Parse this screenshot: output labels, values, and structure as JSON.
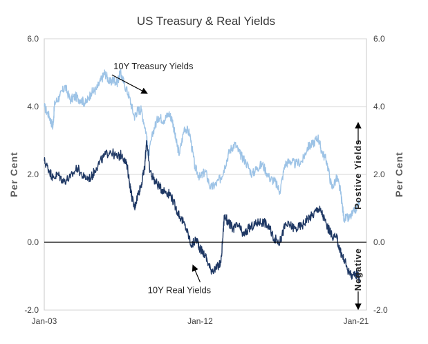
{
  "chart_data": {
    "type": "line",
    "title": "US Treasury & Real Yields",
    "ylabel_left": "Per Cent",
    "ylabel_right": "Per Cent",
    "ylim": [
      -2.0,
      6.0
    ],
    "yticks": [
      "6.0",
      "4.0",
      "2.0",
      "0.0",
      "-2.0"
    ],
    "ytick_values": [
      6,
      4,
      2,
      0,
      -2
    ],
    "xlim": [
      2003.0,
      2021.6
    ],
    "xticks": [
      "Jan-03",
      "Jan-12",
      "Jan-21"
    ],
    "xtick_values": [
      2003.0,
      2012.0,
      2021.0
    ],
    "grid": true,
    "series": [
      {
        "name": "10Y Treasury Yields",
        "color": "#9dc3e6",
        "x": [
          2003.0,
          2003.3,
          2003.5,
          2003.6,
          2003.9,
          2004.2,
          2004.5,
          2004.8,
          2005.1,
          2005.4,
          2005.7,
          2006.0,
          2006.3,
          2006.5,
          2006.8,
          2007.0,
          2007.2,
          2007.4,
          2007.6,
          2007.9,
          2008.2,
          2008.4,
          2008.6,
          2008.9,
          2009.0,
          2009.3,
          2009.6,
          2009.9,
          2010.2,
          2010.4,
          2010.6,
          2010.8,
          2011.1,
          2011.4,
          2011.7,
          2012.0,
          2012.3,
          2012.6,
          2012.9,
          2013.2,
          2013.4,
          2013.7,
          2014.0,
          2014.3,
          2014.6,
          2015.0,
          2015.3,
          2015.6,
          2016.0,
          2016.3,
          2016.6,
          2016.9,
          2017.2,
          2017.5,
          2017.9,
          2018.2,
          2018.5,
          2018.8,
          2019.0,
          2019.3,
          2019.6,
          2019.9,
          2020.1,
          2020.3,
          2020.6,
          2020.9,
          2021.2
        ],
        "values": [
          4.0,
          3.7,
          3.4,
          4.1,
          4.3,
          4.6,
          4.2,
          4.3,
          4.2,
          4.1,
          4.4,
          4.5,
          4.8,
          5.0,
          4.7,
          4.8,
          4.7,
          5.0,
          4.7,
          4.3,
          3.7,
          3.9,
          3.9,
          3.2,
          2.5,
          3.3,
          3.7,
          3.6,
          3.8,
          3.6,
          3.0,
          2.6,
          3.4,
          3.2,
          2.2,
          1.9,
          2.1,
          1.6,
          1.7,
          1.9,
          2.2,
          2.7,
          2.9,
          2.6,
          2.4,
          2.0,
          2.2,
          2.3,
          1.9,
          1.8,
          1.5,
          2.3,
          2.4,
          2.3,
          2.4,
          2.8,
          2.9,
          3.1,
          2.7,
          2.4,
          1.6,
          1.9,
          1.5,
          0.7,
          0.7,
          0.9,
          1.2
        ]
      },
      {
        "name": "10Y Real Yields",
        "color": "#1f3864",
        "x": [
          2003.0,
          2003.3,
          2003.5,
          2003.8,
          2004.1,
          2004.5,
          2004.9,
          2005.3,
          2005.7,
          2006.0,
          2006.4,
          2006.8,
          2007.2,
          2007.5,
          2007.8,
          2008.0,
          2008.2,
          2008.4,
          2008.6,
          2008.8,
          2008.9,
          2009.1,
          2009.4,
          2009.7,
          2010.0,
          2010.3,
          2010.6,
          2010.9,
          2011.2,
          2011.5,
          2011.8,
          2012.0,
          2012.3,
          2012.6,
          2012.9,
          2013.2,
          2013.4,
          2013.6,
          2013.9,
          2014.2,
          2014.5,
          2014.8,
          2015.1,
          2015.4,
          2015.7,
          2016.0,
          2016.3,
          2016.6,
          2016.9,
          2017.2,
          2017.5,
          2017.9,
          2018.2,
          2018.5,
          2018.8,
          2019.0,
          2019.3,
          2019.6,
          2019.9,
          2020.1,
          2020.3,
          2020.6,
          2020.9,
          2021.1,
          2021.2
        ],
        "values": [
          2.4,
          2.1,
          1.9,
          2.0,
          1.8,
          1.9,
          2.2,
          1.9,
          1.9,
          2.2,
          2.5,
          2.7,
          2.5,
          2.6,
          2.2,
          1.5,
          1.0,
          1.4,
          1.7,
          2.2,
          3.0,
          2.1,
          1.8,
          1.6,
          1.5,
          1.4,
          1.0,
          0.7,
          0.4,
          -0.1,
          0.1,
          -0.2,
          -0.4,
          -0.8,
          -0.8,
          -0.6,
          0.8,
          0.6,
          0.4,
          0.5,
          0.2,
          0.4,
          0.5,
          0.6,
          0.6,
          0.4,
          0.1,
          0.0,
          0.5,
          0.5,
          0.4,
          0.5,
          0.7,
          0.8,
          1.0,
          0.9,
          0.5,
          0.2,
          0.1,
          -0.3,
          -0.5,
          -0.9,
          -1.0,
          -0.9,
          -1.1
        ]
      }
    ],
    "annotations": [
      {
        "text": "10Y Treasury Yields",
        "x": 2009.3,
        "y": 5.1,
        "arrow_to": [
          2008.9,
          4.4
        ]
      },
      {
        "text": "10Y Real Yields",
        "x": 2010.8,
        "y": -1.5,
        "arrow_to": [
          2011.6,
          -0.7
        ]
      }
    ],
    "side_labels": {
      "positive": "Postive  Yields",
      "negative": "Negative"
    }
  }
}
